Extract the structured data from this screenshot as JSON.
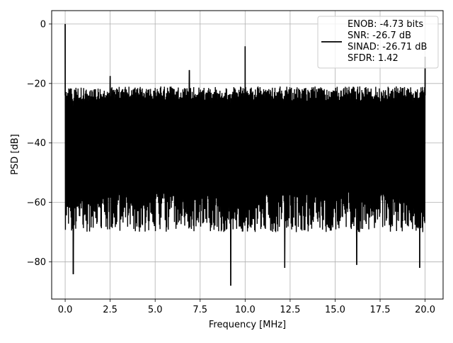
{
  "chart_data": {
    "type": "line",
    "xlabel": "Frequency [MHz]",
    "ylabel": "PSD [dB]",
    "xlim": [
      -0.75,
      21.0
    ],
    "ylim": [
      -92.5,
      4.5
    ],
    "xticks": [
      0.0,
      2.5,
      5.0,
      7.5,
      10.0,
      12.5,
      15.0,
      17.5,
      20.0
    ],
    "xtick_labels": [
      "0.0",
      "2.5",
      "5.0",
      "7.5",
      "10.0",
      "12.5",
      "15.0",
      "17.5",
      "20.0"
    ],
    "yticks": [
      0,
      -20,
      -40,
      -60,
      -80
    ],
    "ytick_labels": [
      "0",
      "−20",
      "−40",
      "−60",
      "−80"
    ],
    "grid": true,
    "legend_position": "top-right",
    "series": [
      {
        "label_lines": [
          "ENOB: -4.73 bits",
          "SNR: -26.7 dB",
          "SINAD: -26.71 dB",
          "SFDR: 1.42"
        ],
        "color": "#000000",
        "noise_band": {
          "x_start": 0.0,
          "x_end": 20.0,
          "typical_top": -24.0,
          "typical_bottom": -64.0
        },
        "spikes": [
          {
            "x": 0.0,
            "y": 0.0
          },
          {
            "x": 2.5,
            "y": -17.5
          },
          {
            "x": 6.9,
            "y": -15.5
          },
          {
            "x": 10.0,
            "y": -7.5
          },
          {
            "x": 20.0,
            "y": -11.0
          }
        ],
        "dips": [
          {
            "x": 0.45,
            "y": -84.0
          },
          {
            "x": 9.2,
            "y": -88.0
          },
          {
            "x": 12.2,
            "y": -82.0
          },
          {
            "x": 16.2,
            "y": -81.0
          },
          {
            "x": 19.7,
            "y": -82.0
          }
        ]
      }
    ]
  }
}
